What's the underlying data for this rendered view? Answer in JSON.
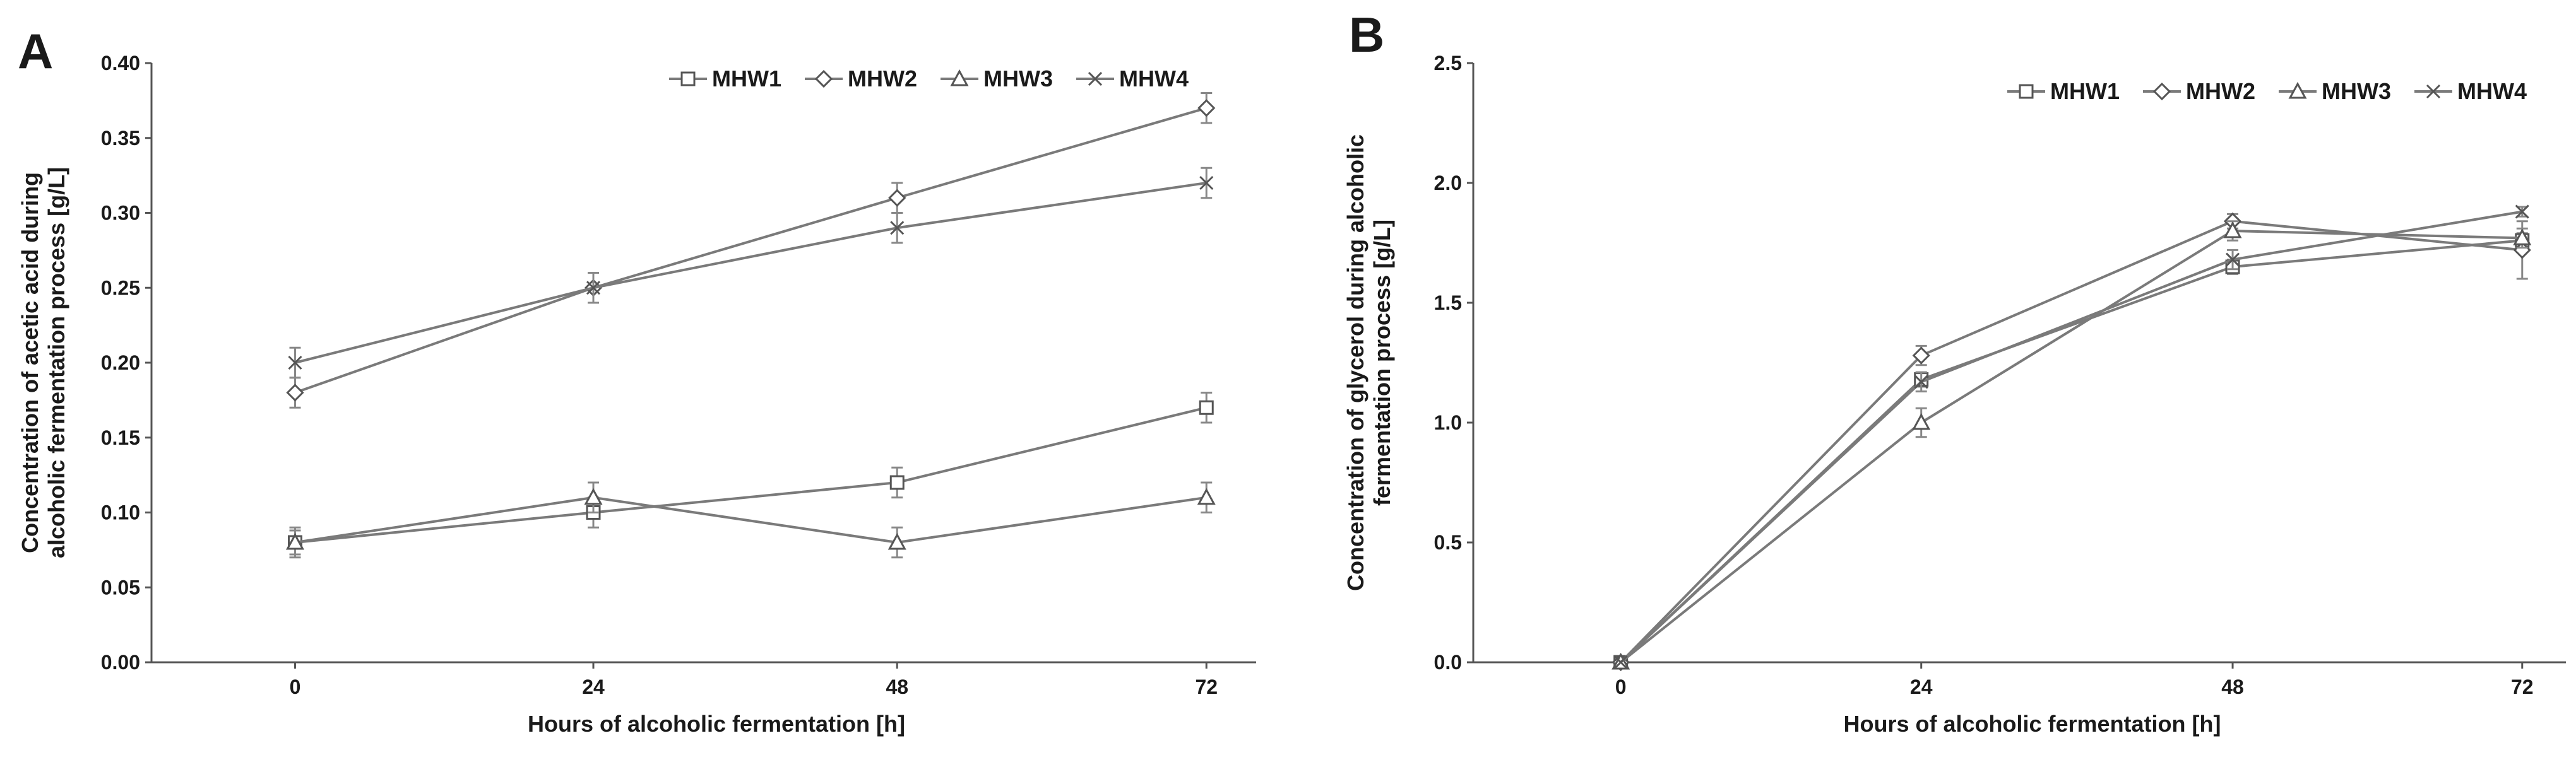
{
  "chart_data": [
    {
      "panel": "A",
      "type": "line",
      "xlabel": "Hours of alcoholic fermentation [h]",
      "ylabel": [
        "Concentration of acetic acid during",
        "alcoholic fermentation process [g/L]"
      ],
      "x": [
        0,
        24,
        48,
        72
      ],
      "x_tick_labels": [
        "0",
        "24",
        "48",
        "72"
      ],
      "ylim": [
        0,
        0.4
      ],
      "y_ticks": [
        0,
        0.05,
        0.1,
        0.15,
        0.2,
        0.25,
        0.3,
        0.35,
        0.4
      ],
      "y_tick_labels": [
        "0.00",
        "0.05",
        "0.10",
        "0.15",
        "0.20",
        "0.25",
        "0.30",
        "0.35",
        "0.40"
      ],
      "legend_position": "top-right",
      "series": [
        {
          "name": "MHW1",
          "marker": "square",
          "values": [
            0.08,
            0.1,
            0.12,
            0.17
          ],
          "errors": [
            0.008,
            0.01,
            0.01,
            0.01
          ]
        },
        {
          "name": "MHW2",
          "marker": "diamond",
          "values": [
            0.18,
            0.25,
            0.31,
            0.37
          ],
          "errors": [
            0.01,
            0.01,
            0.01,
            0.01
          ]
        },
        {
          "name": "MHW3",
          "marker": "triangle",
          "values": [
            0.08,
            0.11,
            0.08,
            0.11
          ],
          "errors": [
            0.01,
            0.01,
            0.01,
            0.01
          ]
        },
        {
          "name": "MHW4",
          "marker": "x",
          "values": [
            0.2,
            0.25,
            0.29,
            0.32
          ],
          "errors": [
            0.01,
            0.01,
            0.01,
            0.01
          ]
        }
      ]
    },
    {
      "panel": "B",
      "type": "line",
      "xlabel": "Hours of alcoholic fermentation [h]",
      "ylabel": [
        "Concentration of glycerol during alcoholic",
        "fermentation process [g/L]"
      ],
      "x": [
        0,
        24,
        48,
        72
      ],
      "x_tick_labels": [
        "0",
        "24",
        "48",
        "72"
      ],
      "ylim": [
        0,
        2.5
      ],
      "y_ticks": [
        0,
        0.5,
        1.0,
        1.5,
        2.0,
        2.5
      ],
      "y_tick_labels": [
        "0.0",
        "0.5",
        "1.0",
        "1.5",
        "2.0",
        "2.5"
      ],
      "legend_position": "top-right",
      "series": [
        {
          "name": "MHW1",
          "marker": "square",
          "values": [
            0,
            1.18,
            1.65,
            1.76
          ],
          "errors": [
            0,
            0.03,
            0.03,
            0.03
          ]
        },
        {
          "name": "MHW2",
          "marker": "diamond",
          "values": [
            0,
            1.28,
            1.84,
            1.72
          ],
          "errors": [
            0,
            0.04,
            0.03,
            0.12
          ]
        },
        {
          "name": "MHW3",
          "marker": "triangle",
          "values": [
            0,
            1.0,
            1.8,
            1.77
          ],
          "errors": [
            0,
            0.06,
            0.04,
            0.04
          ]
        },
        {
          "name": "MHW4",
          "marker": "x",
          "values": [
            0,
            1.17,
            1.68,
            1.88
          ],
          "errors": [
            0,
            0.04,
            0.04,
            0.02
          ]
        }
      ]
    }
  ]
}
